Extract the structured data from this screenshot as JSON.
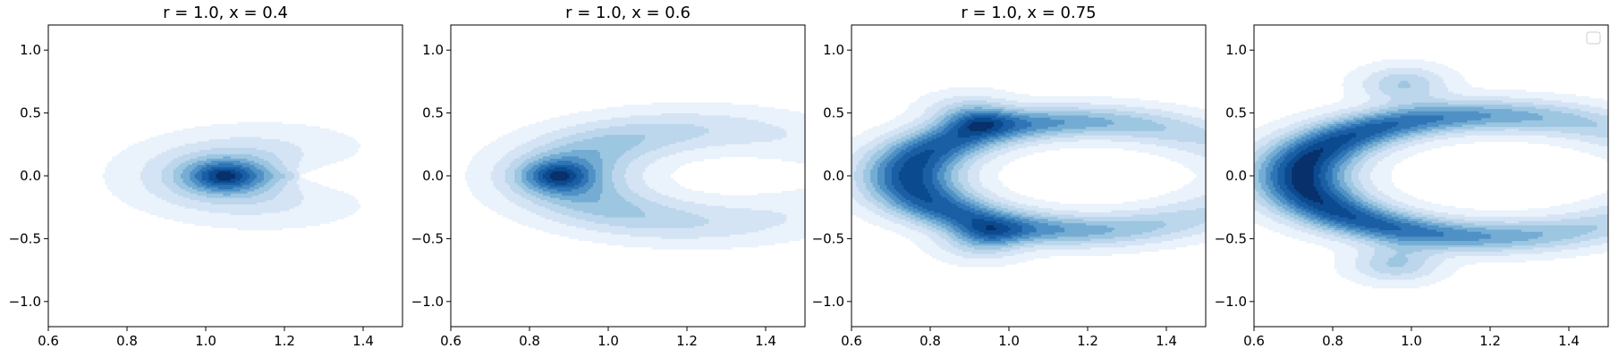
{
  "chart_data": [
    {
      "type": "contour",
      "title": "r = 1.0, x = 0.4",
      "xlim": [
        0.6,
        1.5
      ],
      "ylim": [
        -1.2,
        1.2
      ],
      "xticks": [
        0.6,
        0.8,
        1.0,
        1.2,
        1.4
      ],
      "yticks": [
        -1.0,
        -0.5,
        0.0,
        0.5,
        1.0
      ],
      "xtick_labels": [
        "0.6",
        "0.8",
        "1.0",
        "1.2",
        "1.4"
      ],
      "ytick_labels": [
        "−1.0",
        "−0.5",
        "0.0",
        "0.5",
        "1.0"
      ],
      "grid": false,
      "legend": false,
      "colormap": "Blues",
      "density": {
        "shape": "crescent",
        "center_x": 1.24,
        "center_y": 0.0,
        "radius": 0.17,
        "width": 0.14,
        "arc_half_angle": 1.75,
        "tip_x": 1.39,
        "tip_y": 0.52,
        "peaks": [
          {
            "x": 1.04,
            "y": 0.0
          }
        ]
      }
    },
    {
      "type": "contour",
      "title": "r = 1.0, x = 0.6",
      "xlim": [
        0.6,
        1.5
      ],
      "ylim": [
        -1.2,
        1.2
      ],
      "xticks": [
        0.6,
        0.8,
        1.0,
        1.2,
        1.4
      ],
      "yticks": [
        -1.0,
        -0.5,
        0.0,
        0.5,
        1.0
      ],
      "xtick_labels": [
        "0.6",
        "0.8",
        "1.0",
        "1.2",
        "1.4"
      ],
      "ytick_labels": [
        "−1.0",
        "−0.5",
        "0.0",
        "0.5",
        "1.0"
      ],
      "grid": false,
      "legend": false,
      "colormap": "Blues",
      "density": {
        "shape": "crescent",
        "center_x": 1.26,
        "center_y": 0.0,
        "radius": 0.36,
        "width": 0.11,
        "arc_half_angle": 2.3,
        "tip_x": 1.33,
        "tip_y": 0.62,
        "peaks": [
          {
            "x": 0.86,
            "y": 0.0
          }
        ]
      }
    },
    {
      "type": "contour",
      "title": "r = 1.0, x = 0.75",
      "xlim": [
        0.6,
        1.5
      ],
      "ylim": [
        -1.2,
        1.2
      ],
      "xticks": [
        0.6,
        0.8,
        1.0,
        1.2,
        1.4
      ],
      "yticks": [
        -1.0,
        -0.5,
        0.0,
        0.5,
        1.0
      ],
      "xtick_labels": [
        "0.6",
        "0.8",
        "1.0",
        "1.2",
        "1.4"
      ],
      "ytick_labels": [
        "−1.0",
        "−0.5",
        "0.0",
        "0.5",
        "1.0"
      ],
      "grid": false,
      "legend": false,
      "colormap": "Blues",
      "density": {
        "shape": "crescent",
        "center_x": 1.18,
        "center_y": 0.0,
        "radius": 0.43,
        "width": 0.085,
        "arc_half_angle": 2.7,
        "tip_x": 1.33,
        "tip_y": 0.75,
        "peaks": [
          {
            "x": 0.9,
            "y": 0.51
          },
          {
            "x": 0.93,
            "y": -0.53
          }
        ]
      }
    },
    {
      "type": "contour",
      "title": "",
      "xlim": [
        0.6,
        1.5
      ],
      "ylim": [
        -1.2,
        1.2
      ],
      "xticks": [
        0.6,
        0.8,
        1.0,
        1.2,
        1.4
      ],
      "yticks": [
        -1.0,
        -0.5,
        0.0,
        0.5,
        1.0
      ],
      "xtick_labels": [
        "0.6",
        "0.8",
        "1.0",
        "1.2",
        "1.4"
      ],
      "ytick_labels": [
        "−1.0",
        "−0.5",
        "0.0",
        "0.5",
        "1.0"
      ],
      "grid": false,
      "legend": true,
      "legend_position": "upper right",
      "colormap": "Blues",
      "density": {
        "shape": "crescent",
        "center_x": 1.2,
        "center_y": 0.0,
        "radius": 0.48,
        "width": 0.085,
        "arc_half_angle": 2.68,
        "tip_x": 1.34,
        "tip_y": 0.85,
        "peaks": [
          {
            "x": 0.98,
            "y": 0.73
          },
          {
            "x": 0.96,
            "y": -0.7
          }
        ]
      }
    }
  ]
}
